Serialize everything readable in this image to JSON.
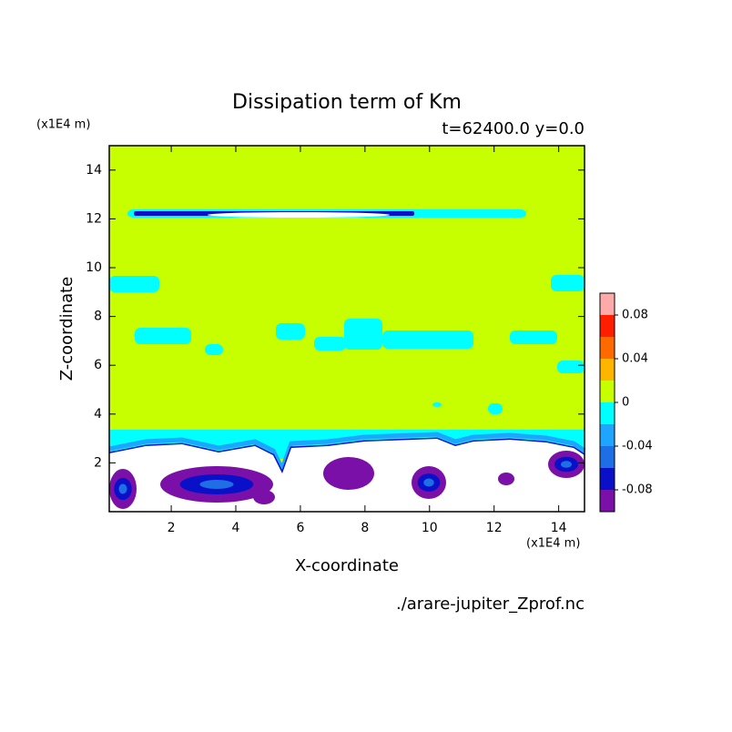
{
  "chart_data": {
    "type": "contour",
    "title": "Dissipation term of Km",
    "subtitle": "t=62400.0 y=0.0",
    "xlabel": "X-coordinate",
    "ylabel": "Z-coordinate",
    "x_unit": "(x1E4 m)",
    "y_unit": "(x1E4 m)",
    "source": "./arare-jupiter_Zprof.nc",
    "xlim": [
      0.08,
      14.8
    ],
    "ylim": [
      0,
      15
    ],
    "xticks": [
      2,
      4,
      6,
      8,
      10,
      12,
      14
    ],
    "yticks": [
      2,
      4,
      6,
      8,
      10,
      12,
      14
    ],
    "levels": [
      -0.1,
      -0.08,
      -0.06,
      -0.04,
      -0.02,
      0,
      0.02,
      0.04,
      0.06,
      0.08,
      0.1
    ],
    "level_colors": [
      "#7a10a8",
      "#0a10c8",
      "#1e6ee6",
      "#1ea6ff",
      "#00ffff",
      "#c8ff00",
      "#ffb400",
      "#ff6a00",
      "#ff1e00",
      "#ffaaaa"
    ],
    "colorbar_ticks": [
      -0.08,
      -0.04,
      0,
      0.04,
      0.08
    ]
  }
}
